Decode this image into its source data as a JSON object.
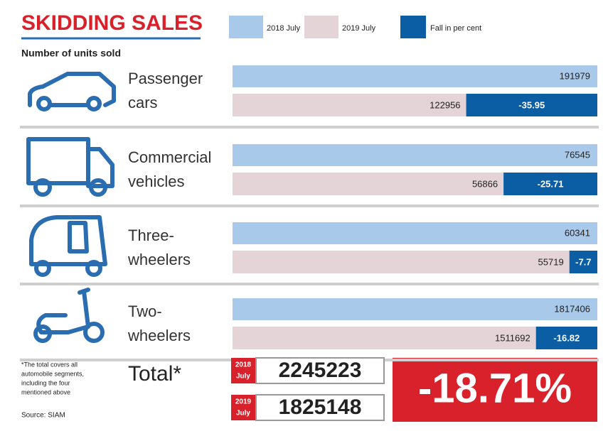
{
  "title": "SKIDDING SALES",
  "subtitle": "Number of units sold",
  "legend": {
    "current": "2018 July",
    "previous": "2019 July",
    "fall": "Fall in per cent"
  },
  "colors": {
    "current": "#a9c9ea",
    "previous": "#e4d4d7",
    "fall": "#0b5ea4"
  },
  "segments": [
    {
      "label": [
        "Passenger",
        "cars"
      ],
      "current": 191979,
      "previous": 122956,
      "fall": -35.95
    },
    {
      "label": [
        "Commercial",
        "vehicles"
      ],
      "current": 76545,
      "previous": 56866,
      "fall": -25.71
    },
    {
      "label": [
        "Three-",
        "wheelers"
      ],
      "current": 60341,
      "previous": 55719,
      "fall": -7.7
    },
    {
      "label": [
        "Two-",
        "wheelers"
      ],
      "current": 1817406,
      "previous": 1511692,
      "fall": -16.82
    }
  ],
  "total": {
    "label": "Total*",
    "rows": [
      {
        "year": "2018",
        "month": "July",
        "value": 2245223
      },
      {
        "year": "2019",
        "month": "July",
        "value": 1825148
      }
    ],
    "fall": "-18.71%"
  },
  "footnote": [
    "*The total covers all",
    "automobile segments,",
    "including the four",
    "mentioned above"
  ],
  "source": "Source: SIAM"
}
